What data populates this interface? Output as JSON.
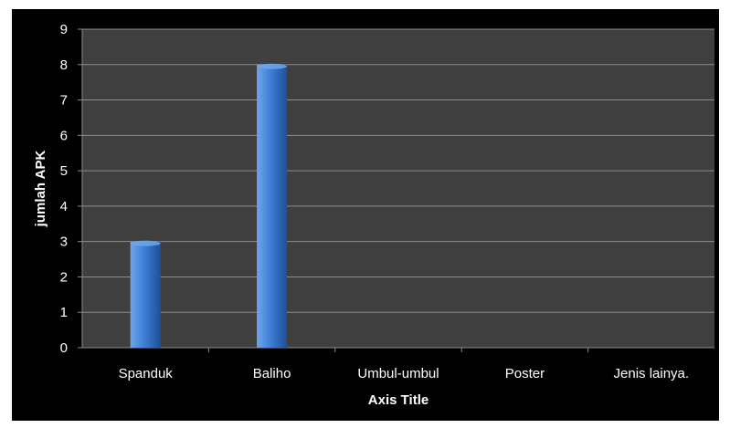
{
  "chart_data": {
    "type": "bar",
    "categories": [
      "Spanduk",
      "Baliho",
      "Umbul-umbul",
      "Poster",
      "Jenis lainya."
    ],
    "values": [
      3,
      8,
      0,
      0,
      0
    ],
    "title": "",
    "xlabel": "Axis Title",
    "ylabel": "jumlah APK",
    "ylim": [
      0,
      9
    ],
    "yticks": [
      0,
      1,
      2,
      3,
      4,
      5,
      6,
      7,
      8,
      9
    ],
    "grid": true,
    "legend": "none",
    "colors": {
      "background": "#000000",
      "plot_area": "#3f3f3f",
      "grid": "#8c8c8c",
      "bar_light": "#6fa6ec",
      "bar_mid": "#3e7fd6",
      "bar_dark": "#1f4f98",
      "text": "#ffffff"
    }
  }
}
